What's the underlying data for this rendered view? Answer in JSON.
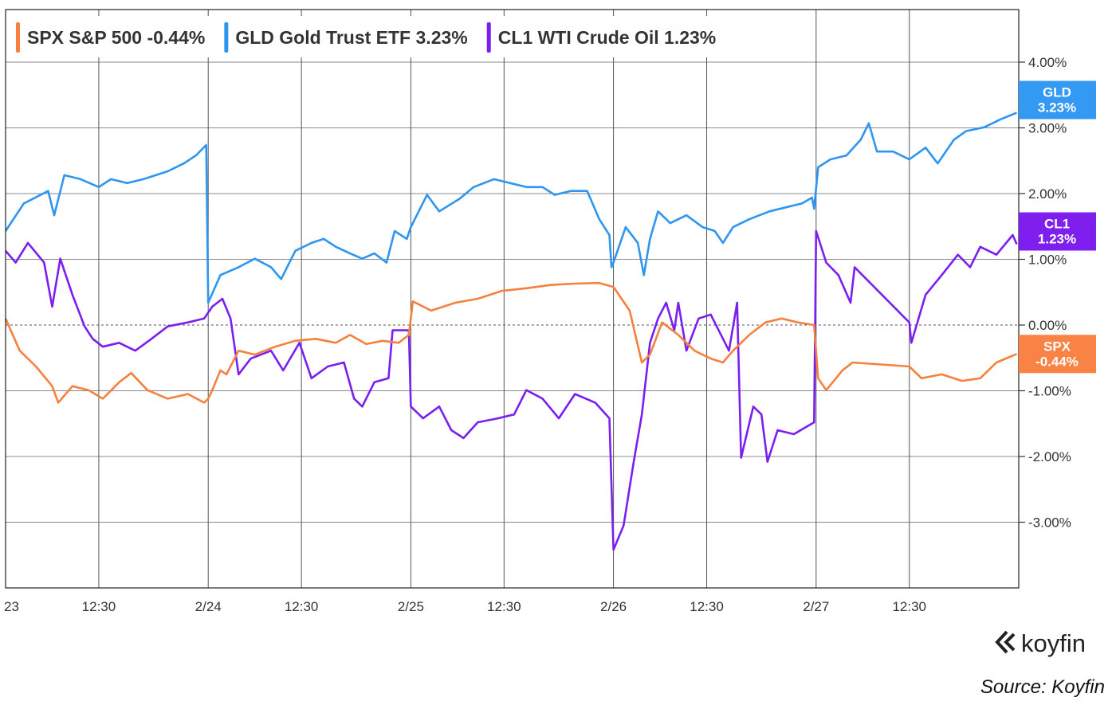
{
  "chart_data": {
    "type": "line",
    "title": "",
    "xlabel": "",
    "ylabel": "",
    "x_unit": "trading days since 2/23 open",
    "xlim": [
      0,
      5
    ],
    "ylim": [
      -4.0,
      4.8
    ],
    "grid": true,
    "legend_placement": "top-left",
    "y_ticks": [
      {
        "value": 4,
        "label": "4.00%"
      },
      {
        "value": 3,
        "label": "3.00%"
      },
      {
        "value": 2,
        "label": "2.00%"
      },
      {
        "value": 1,
        "label": "1.00%"
      },
      {
        "value": 0,
        "label": "0.00%"
      },
      {
        "value": -1,
        "label": "-1.00%"
      },
      {
        "value": -2,
        "label": "-2.00%"
      },
      {
        "value": -3,
        "label": "-3.00%"
      }
    ],
    "x_ticks": [
      {
        "value": 0,
        "label": "23"
      },
      {
        "value": 0.46,
        "label": "12:30"
      },
      {
        "value": 1,
        "label": "2/24"
      },
      {
        "value": 1.46,
        "label": "12:30"
      },
      {
        "value": 2,
        "label": "2/25"
      },
      {
        "value": 2.46,
        "label": "12:30"
      },
      {
        "value": 3,
        "label": "2/26"
      },
      {
        "value": 3.46,
        "label": "12:30"
      },
      {
        "value": 4,
        "label": "2/27"
      },
      {
        "value": 4.46,
        "label": "12:30"
      }
    ],
    "series": [
      {
        "ticker": "SPX",
        "name": "S&P 500",
        "change": "-0.44%",
        "badge": "-0.44%",
        "color": "#f5813f",
        "badge_color": "#f98245",
        "last": -0.44,
        "points": [
          [
            0,
            0.1
          ],
          [
            0.07,
            -0.39
          ],
          [
            0.15,
            -0.63
          ],
          [
            0.23,
            -0.93
          ],
          [
            0.26,
            -1.18
          ],
          [
            0.33,
            -0.93
          ],
          [
            0.41,
            -0.99
          ],
          [
            0.48,
            -1.12
          ],
          [
            0.56,
            -0.87
          ],
          [
            0.62,
            -0.73
          ],
          [
            0.7,
            -0.99
          ],
          [
            0.8,
            -1.12
          ],
          [
            0.9,
            -1.05
          ],
          [
            0.98,
            -1.18
          ],
          [
            1.0,
            -1.12
          ],
          [
            1.02,
            -0.99
          ],
          [
            1.06,
            -0.69
          ],
          [
            1.09,
            -0.75
          ],
          [
            1.15,
            -0.39
          ],
          [
            1.23,
            -0.45
          ],
          [
            1.33,
            -0.33
          ],
          [
            1.43,
            -0.24
          ],
          [
            1.53,
            -0.21
          ],
          [
            1.63,
            -0.27
          ],
          [
            1.7,
            -0.15
          ],
          [
            1.78,
            -0.29
          ],
          [
            1.86,
            -0.24
          ],
          [
            1.94,
            -0.27
          ],
          [
            1.99,
            -0.15
          ],
          [
            2.01,
            0.36
          ],
          [
            2.1,
            0.22
          ],
          [
            2.22,
            0.34
          ],
          [
            2.33,
            0.4
          ],
          [
            2.45,
            0.52
          ],
          [
            2.57,
            0.56
          ],
          [
            2.69,
            0.61
          ],
          [
            2.81,
            0.63
          ],
          [
            2.93,
            0.64
          ],
          [
            3.0,
            0.58
          ],
          [
            3.08,
            0.22
          ],
          [
            3.14,
            -0.57
          ],
          [
            3.18,
            -0.45
          ],
          [
            3.24,
            0.04
          ],
          [
            3.32,
            -0.15
          ],
          [
            3.4,
            -0.39
          ],
          [
            3.48,
            -0.51
          ],
          [
            3.54,
            -0.57
          ],
          [
            3.59,
            -0.39
          ],
          [
            3.67,
            -0.15
          ],
          [
            3.75,
            0.04
          ],
          [
            3.83,
            0.1
          ],
          [
            3.91,
            0.04
          ],
          [
            3.99,
            0.0
          ],
          [
            4.01,
            -0.81
          ],
          [
            4.05,
            -0.99
          ],
          [
            4.13,
            -0.69
          ],
          [
            4.18,
            -0.57
          ],
          [
            4.46,
            -0.63
          ],
          [
            4.52,
            -0.81
          ],
          [
            4.62,
            -0.75
          ],
          [
            4.72,
            -0.85
          ],
          [
            4.81,
            -0.81
          ],
          [
            4.89,
            -0.57
          ],
          [
            4.99,
            -0.44
          ]
        ]
      },
      {
        "ticker": "GLD",
        "name": "Gold Trust ETF",
        "change": "3.23%",
        "badge": "3.23%",
        "color": "#2e96f0",
        "badge_color": "#3399f3",
        "last": 3.23,
        "points": [
          [
            0,
            1.43
          ],
          [
            0.09,
            1.85
          ],
          [
            0.21,
            2.04
          ],
          [
            0.24,
            1.67
          ],
          [
            0.29,
            2.28
          ],
          [
            0.37,
            2.22
          ],
          [
            0.46,
            2.1
          ],
          [
            0.52,
            2.22
          ],
          [
            0.6,
            2.16
          ],
          [
            0.68,
            2.22
          ],
          [
            0.8,
            2.34
          ],
          [
            0.88,
            2.46
          ],
          [
            0.94,
            2.58
          ],
          [
            0.99,
            2.74
          ],
          [
            1.0,
            0.34
          ],
          [
            1.06,
            0.76
          ],
          [
            1.15,
            0.88
          ],
          [
            1.23,
            1.01
          ],
          [
            1.31,
            0.88
          ],
          [
            1.36,
            0.7
          ],
          [
            1.43,
            1.13
          ],
          [
            1.51,
            1.25
          ],
          [
            1.57,
            1.31
          ],
          [
            1.63,
            1.19
          ],
          [
            1.7,
            1.09
          ],
          [
            1.76,
            1.01
          ],
          [
            1.82,
            1.09
          ],
          [
            1.88,
            0.95
          ],
          [
            1.92,
            1.43
          ],
          [
            1.98,
            1.31
          ],
          [
            2.0,
            1.49
          ],
          [
            2.08,
            1.98
          ],
          [
            2.14,
            1.73
          ],
          [
            2.24,
            1.92
          ],
          [
            2.31,
            2.1
          ],
          [
            2.41,
            2.22
          ],
          [
            2.49,
            2.16
          ],
          [
            2.57,
            2.1
          ],
          [
            2.65,
            2.1
          ],
          [
            2.71,
            1.98
          ],
          [
            2.79,
            2.04
          ],
          [
            2.87,
            2.04
          ],
          [
            2.93,
            1.61
          ],
          [
            2.98,
            1.37
          ],
          [
            2.99,
            0.88
          ],
          [
            3.0,
            0.95
          ],
          [
            3.06,
            1.49
          ],
          [
            3.12,
            1.25
          ],
          [
            3.15,
            0.76
          ],
          [
            3.18,
            1.31
          ],
          [
            3.22,
            1.73
          ],
          [
            3.28,
            1.55
          ],
          [
            3.36,
            1.67
          ],
          [
            3.44,
            1.49
          ],
          [
            3.5,
            1.43
          ],
          [
            3.54,
            1.25
          ],
          [
            3.59,
            1.49
          ],
          [
            3.67,
            1.61
          ],
          [
            3.77,
            1.73
          ],
          [
            3.85,
            1.79
          ],
          [
            3.93,
            1.85
          ],
          [
            3.98,
            1.94
          ],
          [
            3.99,
            1.77
          ],
          [
            4.01,
            2.4
          ],
          [
            4.07,
            2.52
          ],
          [
            4.15,
            2.58
          ],
          [
            4.22,
            2.82
          ],
          [
            4.26,
            3.07
          ],
          [
            4.3,
            2.64
          ],
          [
            4.38,
            2.64
          ],
          [
            4.46,
            2.52
          ],
          [
            4.54,
            2.7
          ],
          [
            4.6,
            2.46
          ],
          [
            4.68,
            2.82
          ],
          [
            4.74,
            2.95
          ],
          [
            4.83,
            3.01
          ],
          [
            4.91,
            3.13
          ],
          [
            4.99,
            3.23
          ]
        ]
      },
      {
        "ticker": "CL1",
        "name": "WTI Crude Oil",
        "change": "1.23%",
        "badge": "1.23%",
        "color": "#7a1ff0",
        "badge_color": "#7f1fef",
        "last": 1.23,
        "points": [
          [
            0,
            1.13
          ],
          [
            0.05,
            0.95
          ],
          [
            0.11,
            1.25
          ],
          [
            0.19,
            0.95
          ],
          [
            0.23,
            0.28
          ],
          [
            0.27,
            1.01
          ],
          [
            0.33,
            0.46
          ],
          [
            0.39,
            -0.02
          ],
          [
            0.43,
            -0.21
          ],
          [
            0.48,
            -0.33
          ],
          [
            0.56,
            -0.27
          ],
          [
            0.64,
            -0.39
          ],
          [
            0.72,
            -0.21
          ],
          [
            0.8,
            -0.02
          ],
          [
            0.9,
            0.04
          ],
          [
            0.98,
            0.1
          ],
          [
            1.02,
            0.28
          ],
          [
            1.07,
            0.4
          ],
          [
            1.11,
            0.1
          ],
          [
            1.15,
            -0.75
          ],
          [
            1.21,
            -0.51
          ],
          [
            1.31,
            -0.39
          ],
          [
            1.37,
            -0.69
          ],
          [
            1.45,
            -0.27
          ],
          [
            1.51,
            -0.81
          ],
          [
            1.59,
            -0.63
          ],
          [
            1.67,
            -0.57
          ],
          [
            1.72,
            -1.12
          ],
          [
            1.76,
            -1.24
          ],
          [
            1.82,
            -0.87
          ],
          [
            1.89,
            -0.81
          ],
          [
            1.91,
            -0.08
          ],
          [
            1.99,
            -0.08
          ],
          [
            2.0,
            -1.24
          ],
          [
            2.06,
            -1.42
          ],
          [
            2.14,
            -1.24
          ],
          [
            2.2,
            -1.6
          ],
          [
            2.26,
            -1.72
          ],
          [
            2.33,
            -1.48
          ],
          [
            2.43,
            -1.42
          ],
          [
            2.51,
            -1.36
          ],
          [
            2.57,
            -0.99
          ],
          [
            2.65,
            -1.12
          ],
          [
            2.73,
            -1.42
          ],
          [
            2.81,
            -1.05
          ],
          [
            2.91,
            -1.18
          ],
          [
            2.98,
            -1.42
          ],
          [
            3.0,
            -3.42
          ],
          [
            3.05,
            -3.05
          ],
          [
            3.1,
            -2.08
          ],
          [
            3.14,
            -1.36
          ],
          [
            3.18,
            -0.27
          ],
          [
            3.22,
            0.1
          ],
          [
            3.26,
            0.34
          ],
          [
            3.3,
            -0.08
          ],
          [
            3.32,
            0.34
          ],
          [
            3.36,
            -0.39
          ],
          [
            3.42,
            0.1
          ],
          [
            3.48,
            0.16
          ],
          [
            3.57,
            -0.39
          ],
          [
            3.61,
            0.34
          ],
          [
            3.63,
            -2.02
          ],
          [
            3.69,
            -1.24
          ],
          [
            3.73,
            -1.36
          ],
          [
            3.76,
            -2.08
          ],
          [
            3.81,
            -1.6
          ],
          [
            3.89,
            -1.66
          ],
          [
            3.99,
            -1.48
          ],
          [
            4.0,
            1.43
          ],
          [
            4.05,
            0.95
          ],
          [
            4.11,
            0.76
          ],
          [
            4.17,
            0.34
          ],
          [
            4.19,
            0.88
          ],
          [
            4.46,
            0.04
          ],
          [
            4.47,
            -0.27
          ],
          [
            4.54,
            0.46
          ],
          [
            4.62,
            0.76
          ],
          [
            4.7,
            1.07
          ],
          [
            4.76,
            0.88
          ],
          [
            4.81,
            1.19
          ],
          [
            4.89,
            1.07
          ],
          [
            4.97,
            1.37
          ],
          [
            4.99,
            1.23
          ]
        ]
      }
    ]
  },
  "branding": {
    "logo_text": "koyfin",
    "source": "Source: Koyfin"
  }
}
